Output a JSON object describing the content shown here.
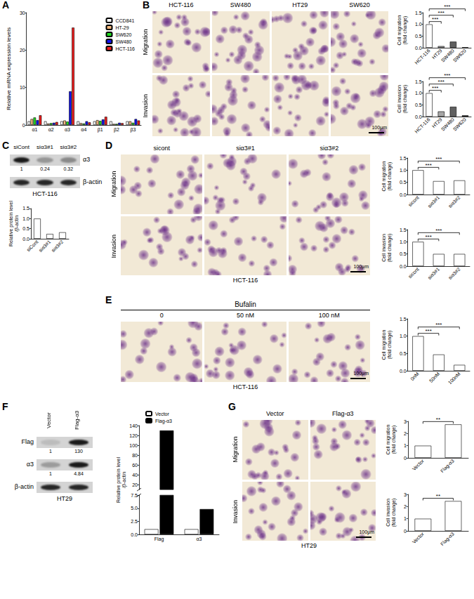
{
  "panels": [
    "A",
    "B",
    "C",
    "D",
    "E",
    "F",
    "G"
  ],
  "chart_data": [
    {
      "type": "bar",
      "categories": [
        "α1",
        "α2",
        "α3",
        "α4",
        "β1",
        "β2",
        "β3"
      ],
      "series": [
        {
          "name": "CCD841",
          "color": "#ffffff",
          "values": [
            1,
            1,
            1,
            1,
            1,
            1,
            1
          ]
        },
        {
          "name": "HT-29",
          "color": "#f5b97f",
          "values": [
            1.6,
            0.4,
            1.2,
            0.5,
            1.3,
            0.3,
            1.0
          ]
        },
        {
          "name": "SW620",
          "color": "#22dd22",
          "values": [
            2.0,
            0.5,
            0.9,
            0.4,
            1.1,
            0.3,
            0.6
          ]
        },
        {
          "name": "SW480",
          "color": "#1010f0",
          "values": [
            1.3,
            0.6,
            9.0,
            1.0,
            1.5,
            0.6,
            1.6
          ]
        },
        {
          "name": "HCT-116",
          "color": "#ee1c1c",
          "values": [
            2.6,
            0.8,
            26.0,
            0.7,
            2.2,
            0.5,
            1.2
          ]
        }
      ],
      "y_label": "Relative mRNA expression levels",
      "ylim": [
        0,
        30
      ],
      "yticks": [
        0,
        10,
        20,
        30
      ],
      "legend": "upper right"
    },
    {
      "type": "bar",
      "categories": [
        "HCT-116",
        "HT29",
        "SW480",
        "SW620"
      ],
      "values": [
        1.0,
        0.07,
        0.26,
        0.02
      ],
      "colors": [
        "#ffffff",
        "#a6a6a6",
        "#606060",
        "#000000"
      ],
      "y_label": "Cell migration\n(fold change)",
      "ylim": [
        0,
        1.5
      ],
      "yticks": [
        {
          "value": 0,
          "label": "0.0"
        },
        0.5,
        {
          "value": 1,
          "label": "1.0"
        },
        1.5
      ],
      "significance": [
        {
          "from": "HCT-116",
          "to": "HT29",
          "label": "***"
        },
        {
          "from": "HCT-116",
          "to": "SW480",
          "label": "***"
        },
        {
          "from": "HCT-116",
          "to": "SW620",
          "label": "***"
        }
      ]
    },
    {
      "type": "bar",
      "categories": [
        "HCT-116",
        "HT29",
        "SW480",
        "SW620"
      ],
      "values": [
        1.0,
        0.22,
        0.42,
        0.05
      ],
      "colors": [
        "#ffffff",
        "#a6a6a6",
        "#606060",
        "#000000"
      ],
      "y_label": "Cell invasion\n(fold change)",
      "ylim": [
        0,
        1.5
      ],
      "yticks": [
        {
          "value": 0,
          "label": "0.0"
        },
        0.5,
        {
          "value": 1,
          "label": "1.0"
        },
        1.5
      ],
      "significance": [
        {
          "from": "HCT-116",
          "to": "HT29",
          "label": "***"
        },
        {
          "from": "HCT-116",
          "to": "SW480",
          "label": "***"
        },
        {
          "from": "HCT-116",
          "to": "SW620",
          "label": "***"
        }
      ]
    },
    {
      "type": "bar",
      "categories": [
        "siCont",
        "siα3#1",
        "siα3#2"
      ],
      "values": [
        1,
        0.24,
        0.32
      ],
      "color": "#ffffff",
      "y_label": "Relative protein level\n/β-actin",
      "ylim": [
        0,
        1.5
      ],
      "yticks": [
        {
          "value": 0,
          "label": "0.0"
        },
        0.5,
        {
          "value": 1,
          "label": "1.0"
        },
        1.5
      ]
    },
    {
      "type": "bar",
      "categories": [
        "sicont",
        "siα3#1",
        "siα3#2"
      ],
      "values": [
        1.0,
        0.55,
        0.58
      ],
      "color": "#ffffff",
      "y_label": "Cell migration\n(fold change)",
      "ylim": [
        0,
        1.5
      ],
      "yticks": [
        {
          "value": 0,
          "label": "0.0"
        },
        0.5,
        {
          "value": 1,
          "label": "1.0"
        },
        1.5
      ],
      "significance": [
        {
          "from": "sicont",
          "to": "siα3#1",
          "label": "***"
        },
        {
          "from": "sicont",
          "to": "siα3#2",
          "label": "***"
        }
      ]
    },
    {
      "type": "bar",
      "categories": [
        "sicont",
        "siα3#1",
        "siα3#2"
      ],
      "values": [
        1.0,
        0.5,
        0.5
      ],
      "color": "#ffffff",
      "y_label": "Cell invasion\n(fold change)",
      "ylim": [
        0,
        1.5
      ],
      "yticks": [
        {
          "value": 0,
          "label": "0.0"
        },
        0.5,
        {
          "value": 1,
          "label": "1.0"
        },
        1.5
      ],
      "significance": [
        {
          "from": "sicont",
          "to": "siα3#1",
          "label": "***"
        },
        {
          "from": "sicont",
          "to": "siα3#2",
          "label": "***"
        }
      ]
    },
    {
      "type": "bar",
      "categories": [
        "0nM",
        "50nM",
        "100nM"
      ],
      "values": [
        1.0,
        0.47,
        0.17
      ],
      "color": "#ffffff",
      "y_label": "Cell migration\n(fold change)",
      "ylim": [
        0,
        1.5
      ],
      "yticks": [
        {
          "value": 0,
          "label": "0.0"
        },
        0.5,
        {
          "value": 1,
          "label": "1.0"
        },
        1.5
      ],
      "significance": [
        {
          "from": "0nM",
          "to": "50nM",
          "label": "***"
        },
        {
          "from": "0nM",
          "to": "100nM",
          "label": "***"
        }
      ]
    },
    {
      "type": "bar",
      "categories": [
        "Flag",
        "α3"
      ],
      "series": [
        {
          "name": "Vector",
          "color": "#ffffff",
          "values": [
            1,
            1
          ]
        },
        {
          "name": "Flag-α3",
          "color": "#000000",
          "values": [
            130,
            4.84
          ]
        }
      ],
      "y_label": "Relative protein level\n/β-actin",
      "ylim": [
        0,
        140
      ],
      "axis_break": [
        7.5,
        10
      ],
      "yticks": [
        {
          "value": 0,
          "label": "0.0"
        },
        2.5,
        {
          "value": 5,
          "label": "5.0"
        },
        7.5,
        20,
        40,
        60,
        80,
        100,
        120,
        140
      ],
      "legend": "upper left"
    },
    {
      "type": "bar",
      "categories": [
        "Vector",
        "Flag-α3"
      ],
      "values": [
        1.0,
        2.75
      ],
      "color": "#ffffff",
      "y_label": "Cell migration\n(fold change)",
      "ylim": [
        0,
        3
      ],
      "yticks": [
        0,
        1,
        2,
        3
      ],
      "significance": [
        {
          "from": "Vector",
          "to": "Flag-α3",
          "label": "**"
        }
      ]
    },
    {
      "type": "bar",
      "categories": [
        "Vector",
        "Flag-α3"
      ],
      "values": [
        1.0,
        2.45
      ],
      "color": "#ffffff",
      "y_label": "Cell invasion\n(fold change)",
      "ylim": [
        0,
        3
      ],
      "yticks": [
        0,
        1,
        2,
        3
      ],
      "significance": [
        {
          "from": "Vector",
          "to": "Flag-α3",
          "label": "**"
        }
      ]
    }
  ],
  "images": [
    {
      "columns": [
        "HCT-116",
        "SW480",
        "HT29",
        "SW620"
      ],
      "rows": [
        "Migration",
        "Invasion"
      ],
      "scale_bar": "100μm"
    },
    {
      "columns": [
        "sicont",
        "siα3#1",
        "siα3#2"
      ],
      "rows": [
        "Migration",
        "Invasion"
      ],
      "scale_bar": "100μm",
      "caption": "HCT-116"
    },
    {
      "header": "Bufalin",
      "columns": [
        "0",
        "50 nM",
        "100 nM"
      ],
      "rows": [],
      "scale_bar": "100μm",
      "caption": "HCT-116"
    },
    {
      "columns": [
        "Vector",
        "Flag-α3"
      ],
      "rows": [
        "Migration",
        "Invasion"
      ],
      "scale_bar": "100μm",
      "caption": "HT29"
    }
  ],
  "blots": [
    {
      "lanes": [
        "siCont",
        "siα3#1",
        "siα3#2"
      ],
      "bands": [
        {
          "name": "α3",
          "quant": [
            1,
            0.24,
            0.32
          ]
        },
        {
          "name": "β-actin"
        }
      ],
      "caption": "HCT-116"
    },
    {
      "lanes": [
        "Vector",
        "Flag-α3"
      ],
      "bands": [
        {
          "name": "Flag",
          "quant": [
            1,
            130
          ]
        },
        {
          "name": "α3",
          "quant": [
            1,
            4.84
          ]
        },
        {
          "name": "β-actin"
        }
      ],
      "caption": "HT29"
    }
  ]
}
